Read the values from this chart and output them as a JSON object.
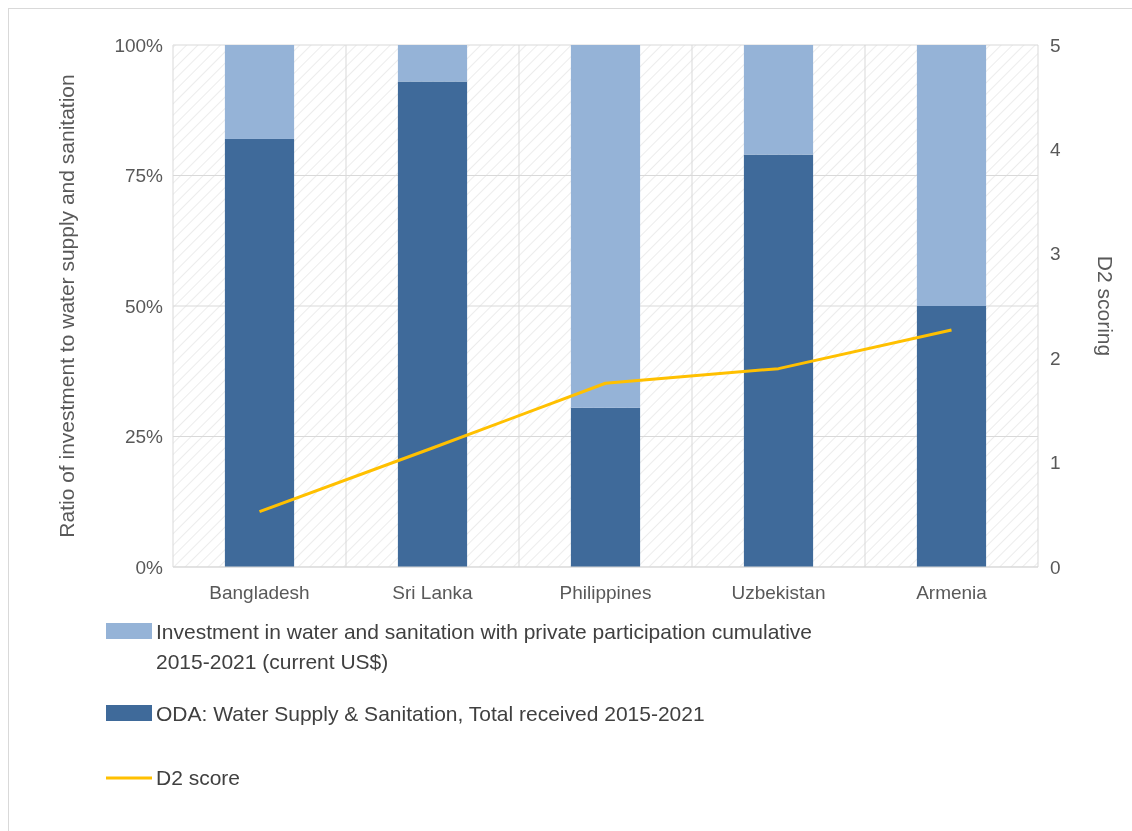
{
  "chart_data": {
    "type": "bar",
    "stacked": true,
    "categories": [
      "Bangladesh",
      "Sri Lanka",
      "Philippines",
      "Uzbekistan",
      "Armenia"
    ],
    "series": [
      {
        "name": "ODA: Water Supply & Sanitation, Total received 2015-2021",
        "color": "#3f6a9a",
        "values": [
          82,
          93,
          30.5,
          79,
          50
        ]
      },
      {
        "name": "Investment in water and sanitation with private participation cumulative 2015-2021 (current US$)",
        "color": "#95b3d7",
        "values": [
          18,
          7,
          69.5,
          21,
          50
        ]
      },
      {
        "name": "D2 score",
        "type": "line",
        "axis": "y2",
        "color": "#ffc000",
        "values": [
          0.53,
          1.14,
          1.76,
          1.9,
          2.27
        ]
      }
    ],
    "ylabel": "Ratio of investment to water supply and sanitation",
    "y2label": "D2 scoring",
    "ylim": [
      0,
      100
    ],
    "yticks": [
      {
        "value": 0,
        "label": "0%"
      },
      {
        "value": 25,
        "label": "25%"
      },
      {
        "value": 50,
        "label": "50%"
      },
      {
        "value": 75,
        "label": "75%"
      },
      {
        "value": 100,
        "label": "100%"
      }
    ],
    "y2lim": [
      0,
      5
    ],
    "y2ticks": [
      0,
      1,
      2,
      3,
      4,
      5
    ],
    "grid": true,
    "legend": "bottom",
    "marker": "none",
    "line_style": "solid"
  }
}
